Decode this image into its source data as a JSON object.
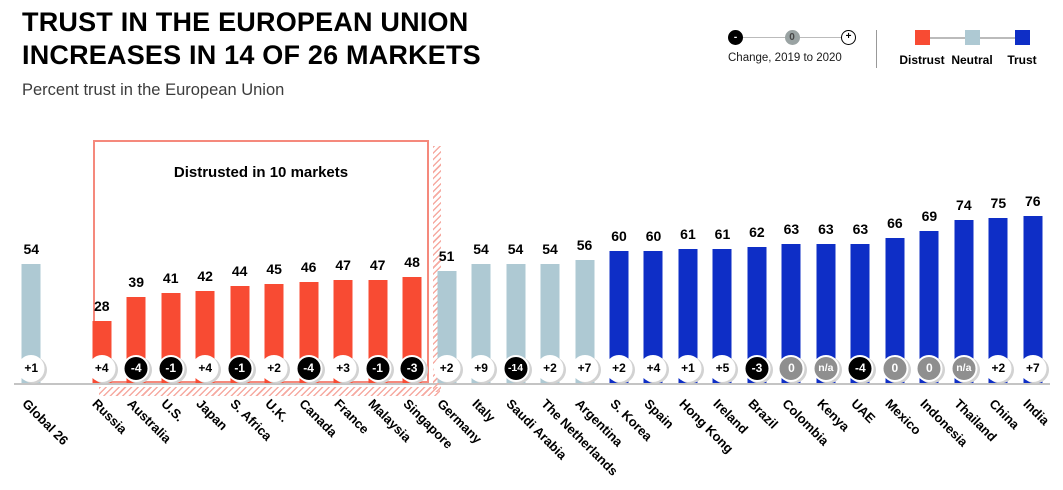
{
  "header": {
    "title_line1": "TRUST IN THE EUROPEAN UNION",
    "title_line2": "INCREASES IN 14 OF 26 MARKETS",
    "subtitle": "Percent trust in the European Union"
  },
  "legend": {
    "change": {
      "minus_symbol": "-",
      "zero_symbol": "0",
      "plus_symbol": "+",
      "caption": "Change, 2019 to 2020"
    },
    "categories": [
      {
        "label": "Distrust",
        "color": "#f84b33"
      },
      {
        "label": "Neutral",
        "color": "#aec9d3"
      },
      {
        "label": "Trust",
        "color": "#0e2ec6"
      }
    ]
  },
  "annotation": {
    "label": "Distrusted in 10 markets"
  },
  "colors": {
    "distrust": "#f84b33",
    "neutral": "#aec9d3",
    "trust": "#0e2ec6",
    "change_positive_bg": "#ffffff",
    "change_negative_bg": "#000000",
    "change_neutral_bg": "#8f8f8f"
  },
  "chart_data": {
    "type": "bar",
    "title": "Trust in the European Union increases in 14 of 26 markets",
    "xlabel": "",
    "ylabel": "Percent trust in the European Union",
    "ylim": [
      0,
      100
    ],
    "grid": false,
    "legend_position": "top-right",
    "categories": [
      "Global 26",
      "Russia",
      "Australia",
      "U.S.",
      "Japan",
      "S. Africa",
      "U.K.",
      "Canada",
      "France",
      "Malaysia",
      "Singapore",
      "Germany",
      "Italy",
      "Saudi Arabia",
      "The Netherlands",
      "Argentina",
      "S. Korea",
      "Spain",
      "Hong Kong",
      "Ireland",
      "Brazil",
      "Colombia",
      "Kenya",
      "UAE",
      "Mexico",
      "Indonesia",
      "Thailand",
      "China",
      "India"
    ],
    "values": [
      54,
      28,
      39,
      41,
      42,
      44,
      45,
      46,
      47,
      47,
      48,
      51,
      54,
      54,
      54,
      56,
      60,
      60,
      61,
      61,
      62,
      63,
      63,
      63,
      66,
      69,
      74,
      75,
      76
    ],
    "changes": [
      "+1",
      "+4",
      "-4",
      "-1",
      "+4",
      "-1",
      "+2",
      "-4",
      "+3",
      "-1",
      "-3",
      "+2",
      "+9",
      "-14",
      "+2",
      "+7",
      "+2",
      "+4",
      "+1",
      "+5",
      "-3",
      "0",
      "n/a",
      "-4",
      "0",
      "0",
      "n/a",
      "+2",
      "+7"
    ],
    "groups": [
      "neutral",
      "distrust",
      "distrust",
      "distrust",
      "distrust",
      "distrust",
      "distrust",
      "distrust",
      "distrust",
      "distrust",
      "distrust",
      "neutral",
      "neutral",
      "neutral",
      "neutral",
      "neutral",
      "trust",
      "trust",
      "trust",
      "trust",
      "trust",
      "trust",
      "trust",
      "trust",
      "trust",
      "trust",
      "trust",
      "trust",
      "trust"
    ]
  }
}
